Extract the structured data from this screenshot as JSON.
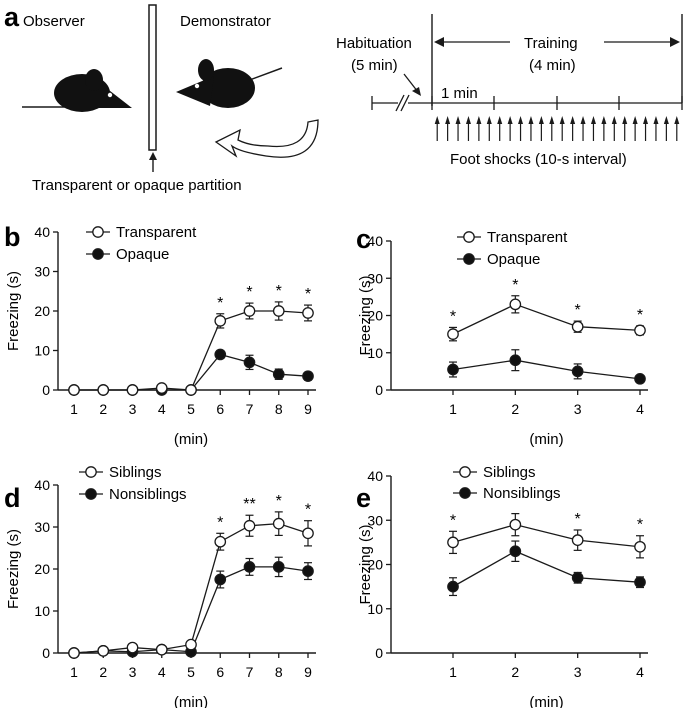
{
  "panel_a": {
    "letter": "a",
    "observer_label": "Observer",
    "demonstrator_label": "Demonstrator",
    "partition_label": "Transparent or opaque partition",
    "habituation_label": "Habituation",
    "habituation_duration": "(5 min)",
    "training_label": "Training",
    "training_duration": "(4 min)",
    "minute_label": "1 min",
    "shocks_label": "Foot shocks (10-s interval)"
  },
  "chart_data": [
    {
      "panel": "b",
      "type": "line",
      "xlabel": "(min)",
      "ylabel": "Freezing (s)",
      "x": [
        1,
        2,
        3,
        4,
        5,
        6,
        7,
        8,
        9
      ],
      "ylim": [
        0,
        40
      ],
      "yticks": [
        0,
        10,
        20,
        30,
        40
      ],
      "series": [
        {
          "name": "Transparent",
          "marker": "open",
          "values": [
            0,
            0,
            0,
            0.5,
            0,
            17.5,
            20,
            20,
            19.5
          ],
          "err": [
            0,
            0,
            0,
            0.5,
            0,
            1.8,
            2,
            2.3,
            2
          ]
        },
        {
          "name": "Opaque",
          "marker": "filled",
          "values": [
            0,
            0,
            0,
            0,
            0,
            9,
            7,
            4,
            3.5
          ],
          "err": [
            0,
            0,
            0,
            0,
            0,
            1,
            1.8,
            1.3,
            1
          ]
        }
      ],
      "stars": [
        {
          "x": 6,
          "text": "*"
        },
        {
          "x": 7,
          "text": "*"
        },
        {
          "x": 8,
          "text": "*"
        },
        {
          "x": 9,
          "text": "*"
        }
      ]
    },
    {
      "panel": "c",
      "type": "line",
      "xlabel": "(min)",
      "ylabel": "Freezing (s)",
      "x": [
        1,
        2,
        3,
        4
      ],
      "ylim": [
        0,
        40
      ],
      "yticks": [
        0,
        10,
        20,
        30,
        40
      ],
      "series": [
        {
          "name": "Transparent",
          "marker": "open",
          "values": [
            15,
            23,
            17,
            16
          ],
          "err": [
            1.8,
            2.3,
            1.5,
            1.2
          ]
        },
        {
          "name": "Opaque",
          "marker": "filled",
          "values": [
            5.5,
            8,
            5,
            3
          ],
          "err": [
            2,
            2.8,
            2,
            0.7
          ]
        }
      ],
      "stars": [
        {
          "x": 1,
          "text": "*"
        },
        {
          "x": 2,
          "text": "*"
        },
        {
          "x": 3,
          "text": "*"
        },
        {
          "x": 4,
          "text": "*"
        }
      ]
    },
    {
      "panel": "d",
      "type": "line",
      "xlabel": "(min)",
      "ylabel": "Freezing (s)",
      "x": [
        1,
        2,
        3,
        4,
        5,
        6,
        7,
        8,
        9
      ],
      "ylim": [
        0,
        40
      ],
      "yticks": [
        0,
        10,
        20,
        30,
        40
      ],
      "series": [
        {
          "name": "Siblings",
          "marker": "open",
          "values": [
            0,
            0.5,
            1.3,
            0.8,
            2,
            26.5,
            30.3,
            30.8,
            28.5
          ],
          "err": [
            0,
            0.5,
            0.5,
            0.5,
            0.5,
            2,
            2.5,
            2.8,
            3
          ]
        },
        {
          "name": "Nonsiblings",
          "marker": "filled",
          "values": [
            0,
            0.5,
            0.3,
            0.8,
            0.3,
            17.5,
            20.5,
            20.5,
            19.5
          ],
          "err": [
            0,
            0.5,
            0.5,
            0.5,
            0.3,
            2,
            2,
            2.3,
            2
          ]
        }
      ],
      "stars": [
        {
          "x": 6,
          "text": "*"
        },
        {
          "x": 7,
          "text": "**"
        },
        {
          "x": 8,
          "text": "*"
        },
        {
          "x": 9,
          "text": "*"
        }
      ]
    },
    {
      "panel": "e",
      "type": "line",
      "xlabel": "(min)",
      "ylabel": "Freezing (s)",
      "x": [
        1,
        2,
        3,
        4
      ],
      "ylim": [
        0,
        40
      ],
      "yticks": [
        0,
        10,
        20,
        30,
        40
      ],
      "series": [
        {
          "name": "Siblings",
          "marker": "open",
          "values": [
            25,
            29,
            25.5,
            24
          ],
          "err": [
            2.5,
            2.5,
            2.3,
            2.5
          ]
        },
        {
          "name": "Nonsiblings",
          "marker": "filled",
          "values": [
            15,
            23,
            17,
            16
          ],
          "err": [
            2,
            2.3,
            1.2,
            1.2
          ]
        }
      ],
      "stars": [
        {
          "x": 1,
          "text": "*"
        },
        {
          "x": 3,
          "text": "*"
        },
        {
          "x": 4,
          "text": "*"
        }
      ]
    }
  ]
}
